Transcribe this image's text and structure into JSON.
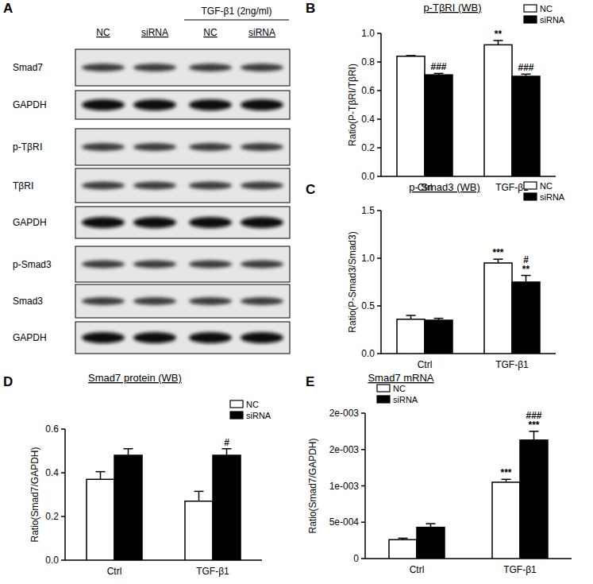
{
  "blot": {
    "panel": "A",
    "treatment": "TGF-β1 (2ng/ml)",
    "lanes": [
      "NC",
      "siRNA",
      "NC",
      "siRNA"
    ],
    "rows": [
      "Smad7",
      "GAPDH",
      "p-TβRⅠ",
      "TβRⅠ",
      "GAPDH",
      "p-Smad3",
      "Smad3",
      "GAPDH"
    ]
  },
  "chart_data": [
    {
      "type": "bar",
      "panel": "B",
      "title": "p-TβRI (WB)",
      "y_label": "Ratio(P-TβRI/TβRI)",
      "categories": [
        "Ctrl",
        "TGF-β1"
      ],
      "series": [
        {
          "name": "NC",
          "color": "#ffffff",
          "values": [
            0.84,
            0.92
          ],
          "errors": [
            0.005,
            0.03
          ],
          "annotations": [
            null,
            [
              "**"
            ]
          ]
        },
        {
          "name": "siRNA",
          "color": "#000000",
          "values": [
            0.71,
            0.7
          ],
          "errors": [
            0.01,
            0.015
          ],
          "annotations": [
            [
              "###"
            ],
            [
              "###"
            ]
          ]
        }
      ],
      "ylim": [
        0,
        1
      ],
      "yticks": [
        {
          "value": 0,
          "label": "0.0"
        },
        0.2,
        0.4,
        0.6,
        0.8,
        {
          "value": 1,
          "label": "1.0"
        }
      ],
      "grid": false,
      "legend": "top-right"
    },
    {
      "type": "bar",
      "panel": "C",
      "title": "p- Smad3 (WB)",
      "y_label": "Ratio(P-Smad3/Smad3)",
      "categories": [
        "Ctrl",
        "TGF-β1"
      ],
      "series": [
        {
          "name": "NC",
          "color": "#ffffff",
          "values": [
            0.36,
            0.95
          ],
          "errors": [
            0.04,
            0.04
          ],
          "annotations": [
            null,
            [
              "***"
            ]
          ]
        },
        {
          "name": "siRNA",
          "color": "#000000",
          "values": [
            0.35,
            0.75
          ],
          "errors": [
            0.02,
            0.07
          ],
          "annotations": [
            null,
            [
              "#",
              "**"
            ]
          ]
        }
      ],
      "ylim": [
        0,
        1.5
      ],
      "yticks": [
        {
          "value": 0,
          "label": "0.0"
        },
        0.5,
        {
          "value": 1,
          "label": "1.0"
        },
        1.5
      ],
      "grid": false,
      "legend": "top-right"
    },
    {
      "type": "bar",
      "panel": "D",
      "title": "Smad7 protein (WB)",
      "y_label": "Ratio(Smad7/GAPDH)",
      "categories": [
        "Ctrl",
        "TGF-β1"
      ],
      "series": [
        {
          "name": "NC",
          "color": "#ffffff",
          "values": [
            0.37,
            0.27
          ],
          "errors": [
            0.035,
            0.045
          ],
          "annotations": [
            null,
            null
          ]
        },
        {
          "name": "siRNA",
          "color": "#000000",
          "values": [
            0.48,
            0.48
          ],
          "errors": [
            0.03,
            0.03
          ],
          "annotations": [
            null,
            [
              "#"
            ]
          ]
        }
      ],
      "ylim": [
        0,
        0.6
      ],
      "yticks": [
        {
          "value": 0,
          "label": "0.0"
        },
        0.2,
        0.4,
        0.6
      ],
      "grid": false,
      "legend": "top-right"
    },
    {
      "type": "bar",
      "panel": "E",
      "title": "Smad7 mRNA",
      "y_label": "Ratio(Smad7/GAPDH)",
      "categories": [
        "Ctrl",
        "TGF-β1"
      ],
      "series": [
        {
          "name": "NC",
          "color": "#ffffff",
          "values": [
            0.00026,
            0.00105
          ],
          "errors": [
            2e-05,
            4e-05
          ],
          "annotations": [
            null,
            [
              "***"
            ]
          ]
        },
        {
          "name": "siRNA",
          "color": "#000000",
          "values": [
            0.00043,
            0.00163
          ],
          "errors": [
            5e-05,
            0.00012
          ],
          "annotations": [
            null,
            [
              "###",
              "***"
            ]
          ]
        }
      ],
      "ylim": [
        0,
        0.002
      ],
      "yticks": [
        0,
        {
          "value": 0.0005,
          "label": "5e-004"
        },
        {
          "value": 0.001,
          "label": "1e-003"
        },
        {
          "value": 0.0015,
          "label": "2e-003"
        },
        {
          "value": 0.002,
          "label": "2e-003"
        }
      ],
      "grid": false,
      "legend": "top-left"
    }
  ]
}
